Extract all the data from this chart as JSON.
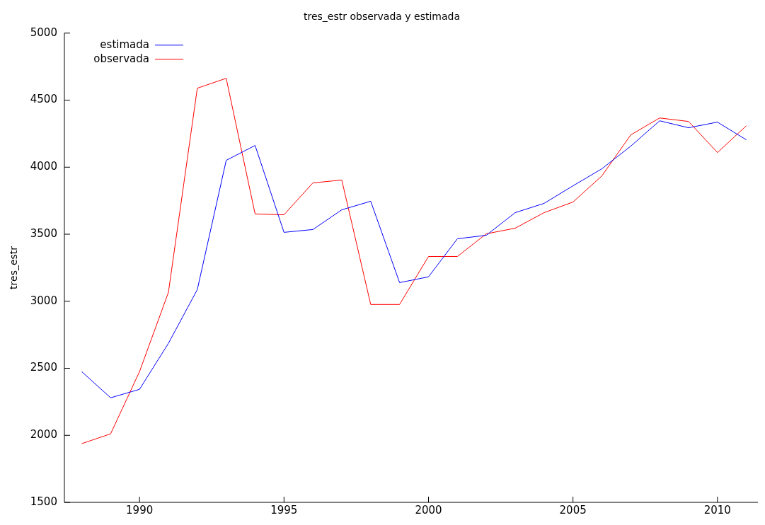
{
  "chart_data": {
    "type": "line",
    "title": "tres_estr observada y estimada",
    "ylabel": "tres_estr",
    "x": [
      1988,
      1989,
      1990,
      1991,
      1992,
      1993,
      1994,
      1995,
      1996,
      1997,
      1998,
      1999,
      2000,
      2001,
      2002,
      2003,
      2004,
      2005,
      2006,
      2007,
      2008,
      2009,
      2010,
      2011
    ],
    "series": [
      {
        "name": "estimada",
        "color": "#0000ff",
        "values": [
          2475,
          2280,
          2343,
          2686,
          3087,
          4051,
          4162,
          3514,
          3535,
          3682,
          3746,
          3139,
          3182,
          3466,
          3492,
          3661,
          3730,
          3861,
          3988,
          4157,
          4346,
          4294,
          4336,
          4204
        ]
      },
      {
        "name": "observada",
        "color": "#ff0000",
        "values": [
          1938,
          2011,
          2475,
          3066,
          4589,
          4663,
          3651,
          3645,
          3883,
          3904,
          2976,
          2976,
          3334,
          3334,
          3503,
          3545,
          3661,
          3740,
          3935,
          4241,
          4367,
          4341,
          4109,
          4309
        ]
      }
    ],
    "xlim": [
      1987.4,
      2011.4
    ],
    "xticks": [
      1990,
      1995,
      2000,
      2005,
      2010
    ],
    "ylim": [
      1500,
      5000
    ],
    "yticks": [
      1500,
      2000,
      2500,
      3000,
      3500,
      4000,
      4500,
      5000
    ],
    "grid": false,
    "legend": "top left",
    "marker": "none",
    "line_style": "solid"
  }
}
